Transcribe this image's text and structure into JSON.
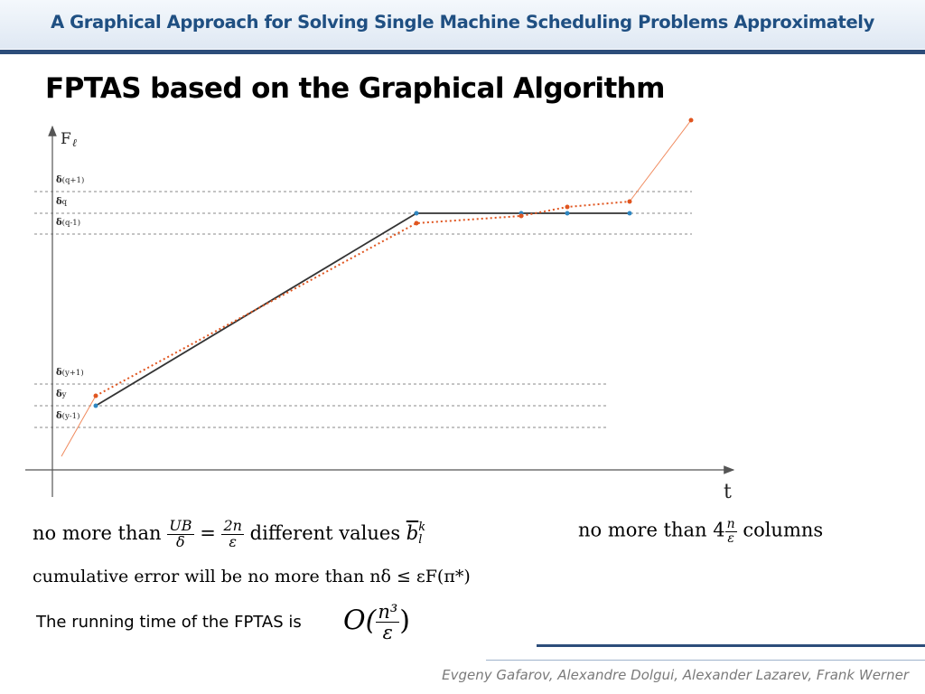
{
  "header": {
    "title": "A Graphical Approach for Solving Single Machine Scheduling Problems Approximately"
  },
  "slide": {
    "title": "FPTAS based on the Graphical Algorithm"
  },
  "chart_data": {
    "type": "line",
    "y_axis_label": "F",
    "y_axis_label_sub": "ℓ",
    "x_axis_label": "t",
    "levels": [
      {
        "sym": "δ",
        "label": "(q+1)"
      },
      {
        "sym": "δ",
        "label": "q"
      },
      {
        "sym": "δ",
        "label": "(q-1)"
      },
      {
        "sym": "δ",
        "label": "(y+1)"
      },
      {
        "sym": "δ",
        "label": "y"
      },
      {
        "sym": "δ",
        "label": "(y-1)"
      }
    ],
    "series": [
      {
        "color": "#333333",
        "style": "solid"
      },
      {
        "color": "#e0551f",
        "style": "dotted"
      }
    ],
    "colors": {
      "exact_points": "#2e86c1",
      "approx_points": "#e0551f"
    }
  },
  "formulas": {
    "line1_prefix": "no more than",
    "line1_frac1_num": "UB",
    "line1_frac1_den": "δ",
    "line1_eq": "=",
    "line1_frac2_num": "2n",
    "line1_frac2_den": "ε",
    "line1_suffix": "different values",
    "line1_symbol": "b",
    "line1_sup": "k",
    "line1_sub": "l",
    "cols_prefix": "no more than 4",
    "cols_num": "n",
    "cols_den": "ε",
    "cols_suffix": "columns",
    "line2": "cumulative error will be no more than nδ ≤ εF(π*)",
    "running_text": "The running time of the FPTAS is",
    "big_o": "O(",
    "big_o_num": "n³",
    "big_o_den": "ε",
    "big_o_close": ")"
  },
  "footer": {
    "authors": "Evgeny Gafarov, Alexandre Dolgui, Alexander Lazarev, Frank Werner"
  }
}
